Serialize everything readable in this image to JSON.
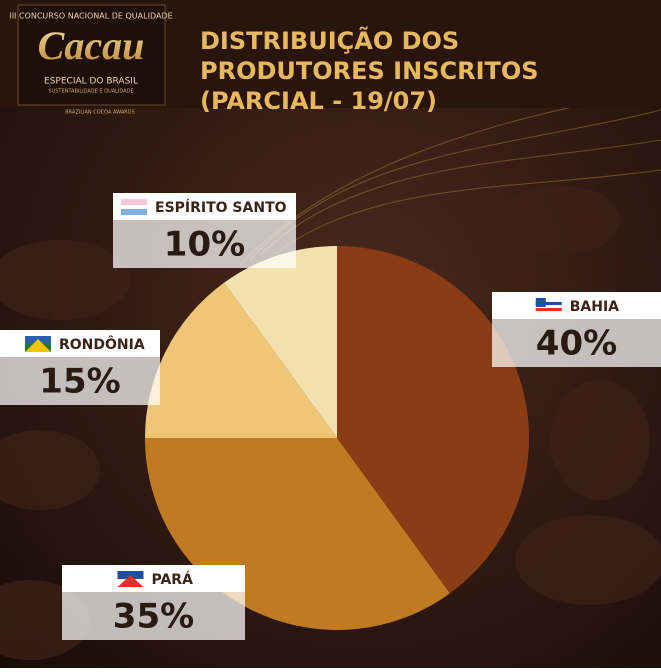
{
  "logo": {
    "contest": "III CONCURSO NACIONAL DE QUALIDADE",
    "brand": "Cacau",
    "subtitle": "ESPECIAL DO BRASIL",
    "tagline": "SUSTENTABILIDADE E QUALIDADE",
    "awards": "BRAZILIAN COCOA AWARDS"
  },
  "chart_data": {
    "type": "pie",
    "title": "DISTRIBUIÇÃO DOS PRODUTORES INSCRITOS (PARCIAL - 19/07)",
    "categories": [
      "BAHIA",
      "PARÁ",
      "RONDÔNIA",
      "ESPÍRITO SANTO"
    ],
    "values": [
      40,
      35,
      15,
      10
    ],
    "value_labels": [
      "40%",
      "35%",
      "15%",
      "10%"
    ],
    "colors": [
      "#8a3d14",
      "#c07a22",
      "#efc676",
      "#f2e0ae"
    ]
  }
}
